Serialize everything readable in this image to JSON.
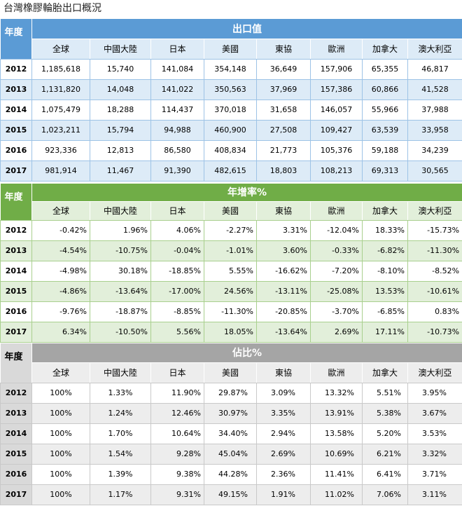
{
  "page_title": "台灣橡膠輪胎出口概況",
  "year_label": "年度",
  "columns": [
    "全球",
    "中國大陸",
    "日本",
    "美國",
    "東協",
    "歐洲",
    "加拿大",
    "澳大利亞"
  ],
  "sections": [
    {
      "title": "出口值",
      "rows": [
        {
          "year": "2012",
          "values": [
            "1,185,618",
            "15,740",
            "141,084",
            "354,148",
            "36,649",
            "157,906",
            "65,355",
            "46,817"
          ]
        },
        {
          "year": "2013",
          "values": [
            "1,131,820",
            "14,048",
            "141,022",
            "350,563",
            "37,969",
            "157,386",
            "60,866",
            "41,528"
          ]
        },
        {
          "year": "2014",
          "values": [
            "1,075,479",
            "18,288",
            "114,437",
            "370,018",
            "31,658",
            "146,057",
            "55,966",
            "37,988"
          ]
        },
        {
          "year": "2015",
          "values": [
            "1,023,211",
            "15,794",
            "94,988",
            "460,900",
            "27,508",
            "109,427",
            "63,539",
            "33,958"
          ]
        },
        {
          "year": "2016",
          "values": [
            "923,336",
            "12,813",
            "86,580",
            "408,834",
            "21,773",
            "105,376",
            "59,188",
            "34,239"
          ]
        },
        {
          "year": "2017",
          "values": [
            "981,914",
            "11,467",
            "91,390",
            "482,615",
            "18,803",
            "108,213",
            "69,313",
            "30,565"
          ]
        }
      ]
    },
    {
      "title": "年增率%",
      "rows": [
        {
          "year": "2012",
          "values": [
            "-0.42%",
            "1.96%",
            "4.06%",
            "-2.27%",
            "3.31%",
            "-12.04%",
            "18.33%",
            "-15.73%"
          ]
        },
        {
          "year": "2013",
          "values": [
            "-4.54%",
            "-10.75%",
            "-0.04%",
            "-1.01%",
            "3.60%",
            "-0.33%",
            "-6.82%",
            "-11.30%"
          ]
        },
        {
          "year": "2014",
          "values": [
            "-4.98%",
            "30.18%",
            "-18.85%",
            "5.55%",
            "-16.62%",
            "-7.20%",
            "-8.10%",
            "-8.52%"
          ]
        },
        {
          "year": "2015",
          "values": [
            "-4.86%",
            "-13.64%",
            "-17.00%",
            "24.56%",
            "-13.11%",
            "-25.08%",
            "13.53%",
            "-10.61%"
          ]
        },
        {
          "year": "2016",
          "values": [
            "-9.76%",
            "-18.87%",
            "-8.85%",
            "-11.30%",
            "-20.85%",
            "-3.70%",
            "-6.85%",
            "0.83%"
          ]
        },
        {
          "year": "2017",
          "values": [
            "6.34%",
            "-10.50%",
            "5.56%",
            "18.05%",
            "-13.64%",
            "2.69%",
            "17.11%",
            "-10.73%"
          ]
        }
      ]
    },
    {
      "title": "佔比%",
      "rows": [
        {
          "year": "2012",
          "values": [
            "100%",
            "1.33%",
            "11.90%",
            "29.87%",
            "3.09%",
            "13.32%",
            "5.51%",
            "3.95%"
          ]
        },
        {
          "year": "2013",
          "values": [
            "100%",
            "1.24%",
            "12.46%",
            "30.97%",
            "3.35%",
            "13.91%",
            "5.38%",
            "3.67%"
          ]
        },
        {
          "year": "2014",
          "values": [
            "100%",
            "1.70%",
            "10.64%",
            "34.40%",
            "2.94%",
            "13.58%",
            "5.20%",
            "3.53%"
          ]
        },
        {
          "year": "2015",
          "values": [
            "100%",
            "1.54%",
            "9.28%",
            "45.04%",
            "2.69%",
            "10.69%",
            "6.21%",
            "3.32%"
          ]
        },
        {
          "year": "2016",
          "values": [
            "100%",
            "1.39%",
            "9.38%",
            "44.28%",
            "2.36%",
            "11.41%",
            "6.41%",
            "3.71%"
          ]
        },
        {
          "year": "2017",
          "values": [
            "100%",
            "1.17%",
            "9.31%",
            "49.15%",
            "1.91%",
            "11.02%",
            "7.06%",
            "3.11%"
          ]
        }
      ]
    }
  ]
}
